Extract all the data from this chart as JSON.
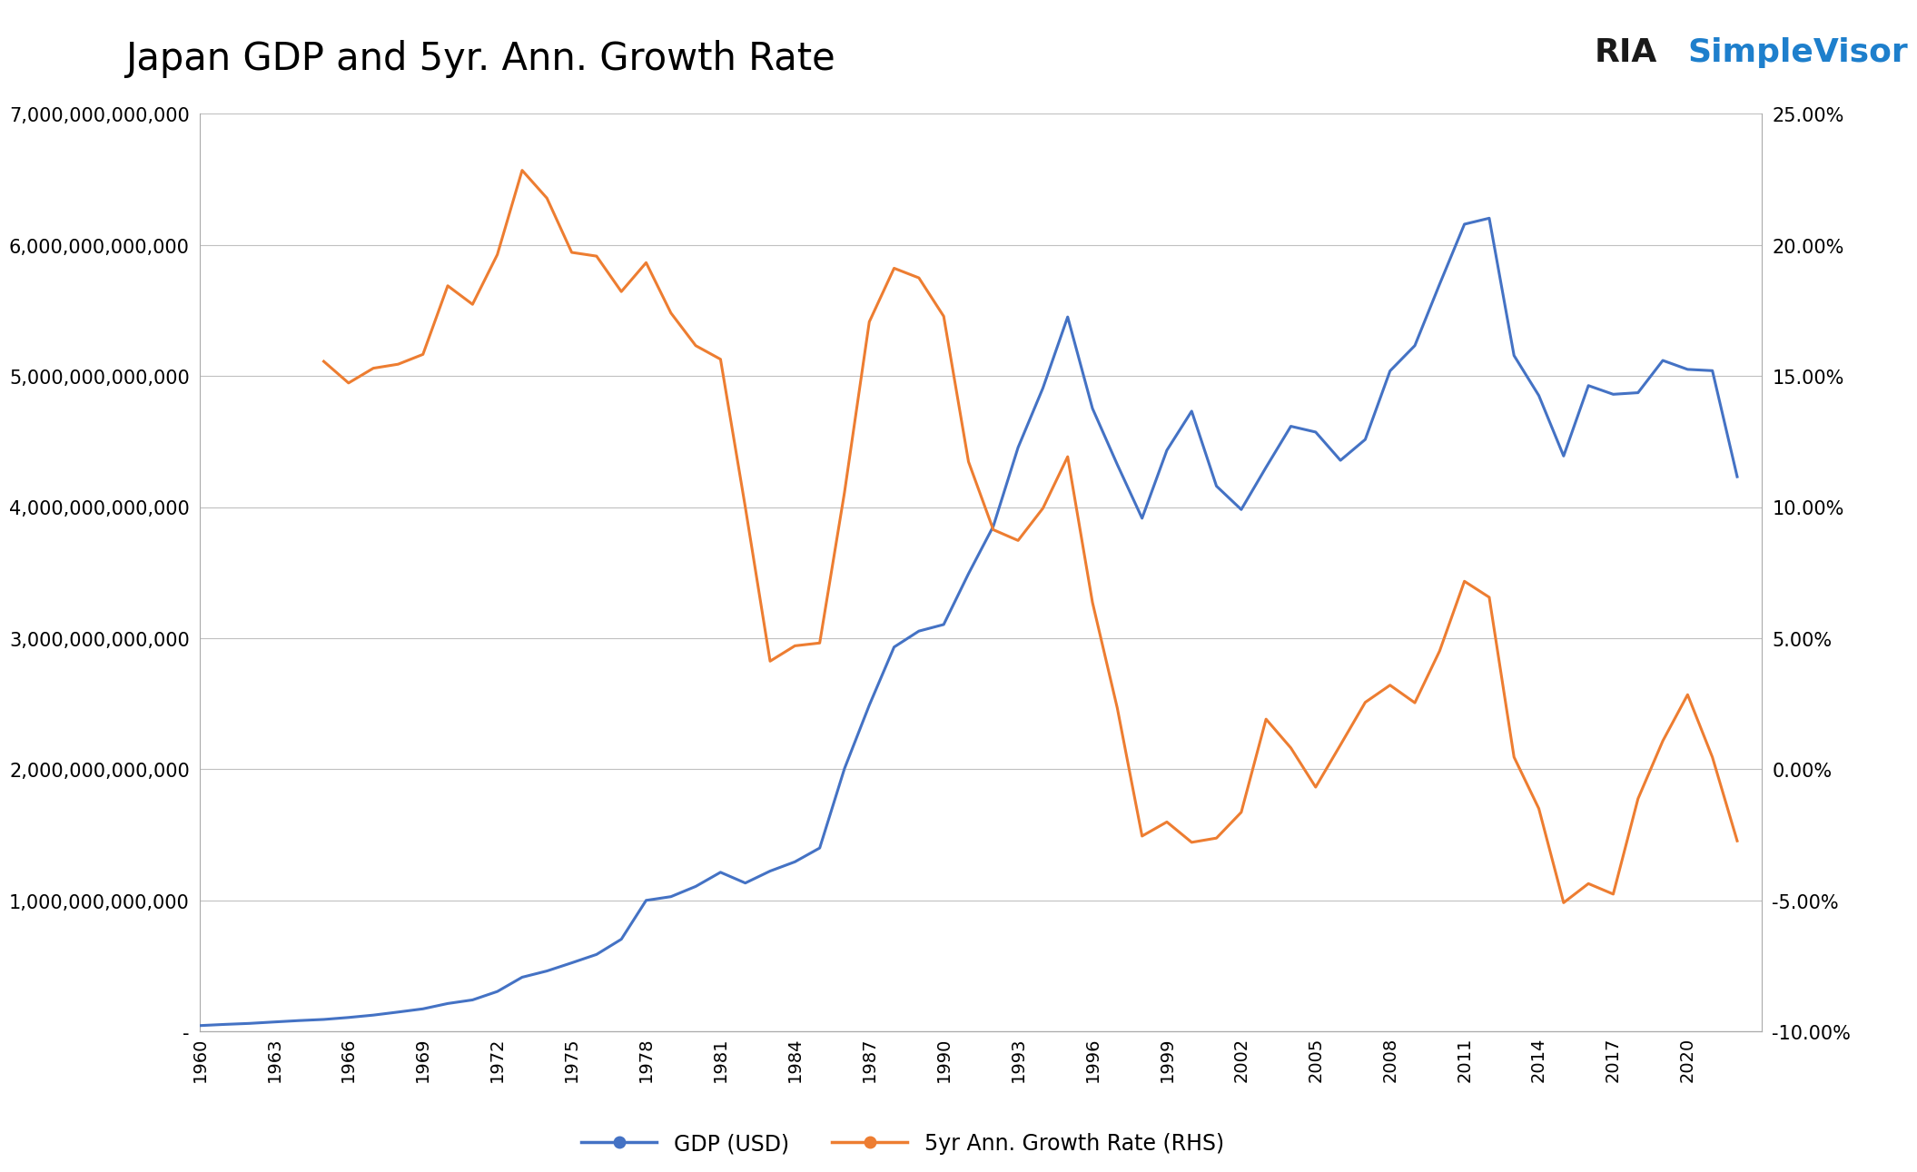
{
  "title": "Japan GDP and 5yr. Ann. Growth Rate",
  "gdp_color": "#4472C4",
  "growth_color": "#ED7D31",
  "background_color": "#FFFFFF",
  "grid_color": "#C0C0C0",
  "years": [
    1960,
    1961,
    1962,
    1963,
    1964,
    1965,
    1966,
    1967,
    1968,
    1969,
    1970,
    1971,
    1972,
    1973,
    1974,
    1975,
    1976,
    1977,
    1978,
    1979,
    1980,
    1981,
    1982,
    1983,
    1984,
    1985,
    1986,
    1987,
    1988,
    1989,
    1990,
    1991,
    1992,
    1993,
    1994,
    1995,
    1996,
    1997,
    1998,
    1999,
    2000,
    2001,
    2002,
    2003,
    2004,
    2005,
    2006,
    2007,
    2008,
    2009,
    2010,
    2011,
    2012,
    2013,
    2014,
    2015,
    2016,
    2017,
    2018,
    2019,
    2020,
    2021,
    2022
  ],
  "gdp": [
    44307342581,
    53420694945,
    61005522813,
    72032940984,
    82557920014,
    91287793698,
    106199000000,
    124282000000,
    147723000000,
    172071000000,
    212754000000,
    240197000000,
    304491000000,
    413219000000,
    460888000000,
    523064000000,
    587050000000,
    703018000000,
    999424000000,
    1027918000000,
    1105985000000,
    1213789000000,
    1131980000000,
    1223050000000,
    1293680000000,
    1399085000000,
    2004940000000,
    2488550000000,
    2931850000000,
    3053640000000,
    3103700000000,
    3491000000000,
    3852660000000,
    4454210000000,
    4906860000000,
    5449750000000,
    4752090000000,
    4324330000000,
    3914570000000,
    4432870000000,
    4731220000000,
    4159840000000,
    3980820000000,
    4302960000000,
    4615960000000,
    4571870000000,
    4356000000000,
    4515270000000,
    5038000000000,
    5231400000000,
    5700100000000,
    6157460000000,
    6203210000000,
    5155720000000,
    4850410000000,
    4389480000000,
    4926230000000,
    4859950000000,
    4872137000000,
    5118026000000,
    5049889000000,
    5040108000000,
    4231141000000
  ],
  "ylim_left": [
    0,
    7000000000000
  ],
  "ylim_right": [
    -0.1,
    0.25
  ],
  "left_yticks": [
    0,
    1000000000000,
    2000000000000,
    3000000000000,
    4000000000000,
    5000000000000,
    6000000000000,
    7000000000000
  ],
  "right_yticks": [
    -0.1,
    -0.05,
    0.0,
    0.05,
    0.1,
    0.15,
    0.2,
    0.25
  ],
  "legend_label_gdp": "GDP (USD)",
  "legend_label_growth": "5yr Ann. Growth Rate (RHS)",
  "logo_text_ria": "RIA",
  "logo_text_sv": "SimpleVisor"
}
